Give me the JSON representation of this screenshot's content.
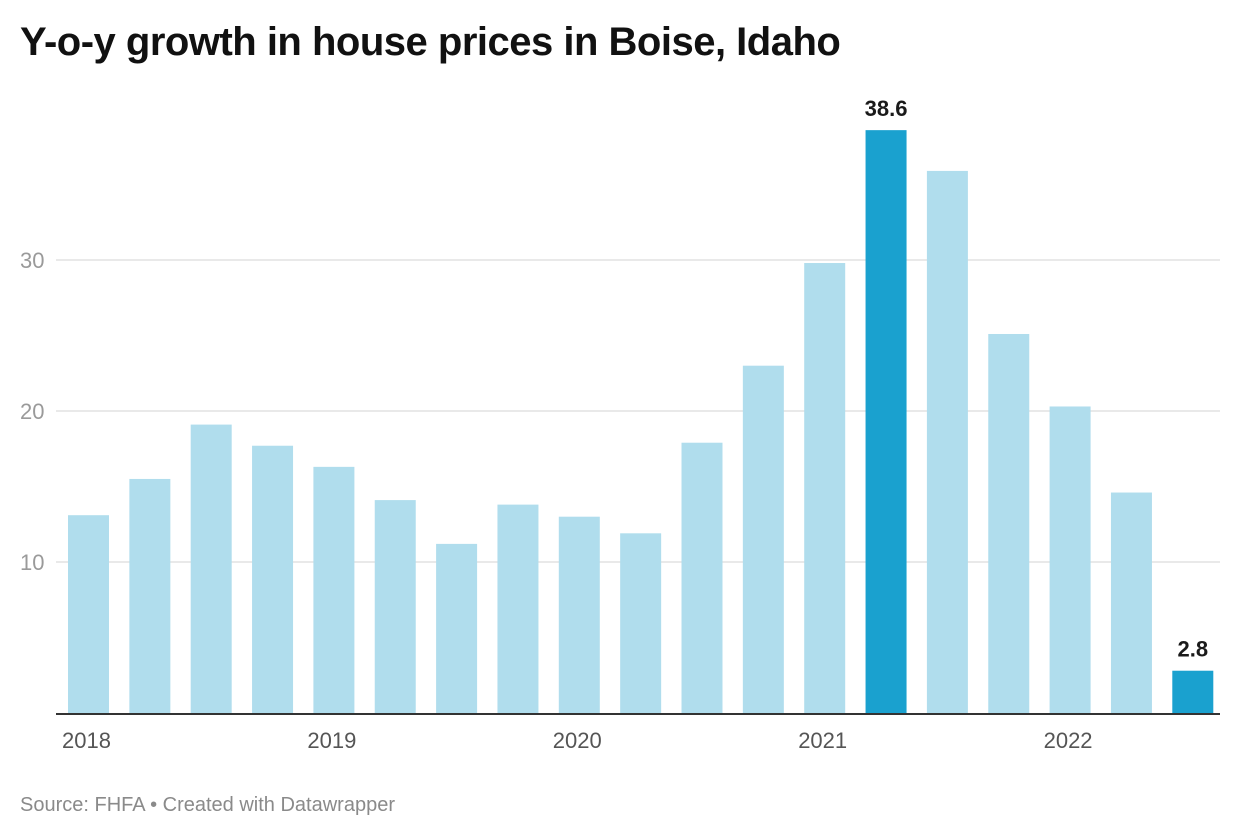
{
  "title": "Y-o-y growth in house prices in Boise, Idaho",
  "footer": {
    "source": "Source: FHFA",
    "separator": "•",
    "credit": "Created with Datawrapper"
  },
  "colors": {
    "bar": "#b0dded",
    "highlight": "#1aa1cf",
    "grid": "#e2e2e2",
    "axis": "#333333"
  },
  "chart_data": {
    "type": "bar",
    "title": "Y-o-y growth in house prices in Boise, Idaho",
    "xlabel": "",
    "ylabel": "",
    "ylim": [
      0,
      40
    ],
    "yticks": [
      10,
      20,
      30
    ],
    "grid": true,
    "categories": [
      "2018 Q1",
      "2018 Q2",
      "2018 Q3",
      "2018 Q4",
      "2019 Q1",
      "2019 Q2",
      "2019 Q3",
      "2019 Q4",
      "2020 Q1",
      "2020 Q2",
      "2020 Q3",
      "2020 Q4",
      "2021 Q1",
      "2021 Q2",
      "2021 Q3",
      "2021 Q4",
      "2022 Q1",
      "2022 Q2",
      "2022 Q3"
    ],
    "values": [
      13.1,
      15.5,
      19.1,
      17.7,
      16.3,
      14.1,
      11.2,
      13.8,
      13.0,
      11.9,
      17.9,
      23.0,
      29.8,
      38.6,
      35.9,
      25.1,
      20.3,
      14.6,
      2.8
    ],
    "highlighted": [
      13,
      18
    ],
    "data_labels": [
      {
        "index": 13,
        "text": "38.6"
      },
      {
        "index": 18,
        "text": "2.8"
      }
    ],
    "x_tick_labels": [
      {
        "index": 0,
        "text": "2018"
      },
      {
        "index": 4,
        "text": "2019"
      },
      {
        "index": 8,
        "text": "2020"
      },
      {
        "index": 12,
        "text": "2021"
      },
      {
        "index": 16,
        "text": "2022"
      }
    ]
  }
}
